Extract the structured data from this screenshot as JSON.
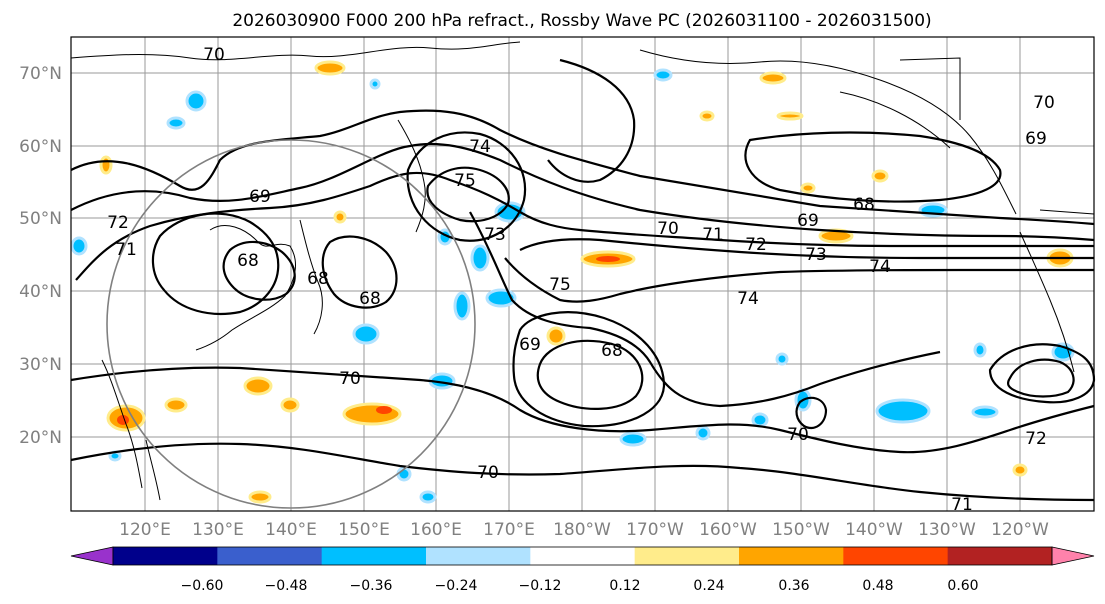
{
  "title": "2026030900 F000 200 hPa refract., Rossby Wave PC (2026031100 - 2026031500)",
  "map": {
    "lat_labels": [
      "70°N",
      "60°N",
      "50°N",
      "40°N",
      "30°N",
      "20°N"
    ],
    "lon_labels": [
      "120°E",
      "130°E",
      "140°E",
      "150°E",
      "160°E",
      "170°E",
      "180°W",
      "170°W",
      "160°W",
      "150°W",
      "140°W",
      "130°W",
      "120°W"
    ]
  },
  "colorbar": {
    "ticks": [
      "−0.60",
      "−0.48",
      "−0.36",
      "−0.24",
      "−0.12",
      "0.12",
      "0.24",
      "0.36",
      "0.48",
      "0.60"
    ],
    "colors": [
      "#9932cc",
      "#00008b",
      "#3a5fcd",
      "#00bfff",
      "#b0e2ff",
      "#ffffff",
      "#ffec8b",
      "#ffa500",
      "#ff4500",
      "#b22222",
      "#ff82ab"
    ]
  },
  "contour_labels": [
    "70",
    "74",
    "75",
    "73",
    "69",
    "72",
    "71",
    "68",
    "68",
    "68",
    "70",
    "71",
    "72",
    "73",
    "74",
    "75",
    "74",
    "69",
    "68",
    "69",
    "68",
    "70",
    "70",
    "70",
    "70",
    "69",
    "72",
    "71"
  ],
  "colors": {
    "label_gray": "#808080",
    "contour": "#000000",
    "grid": "#9a9a9a"
  }
}
